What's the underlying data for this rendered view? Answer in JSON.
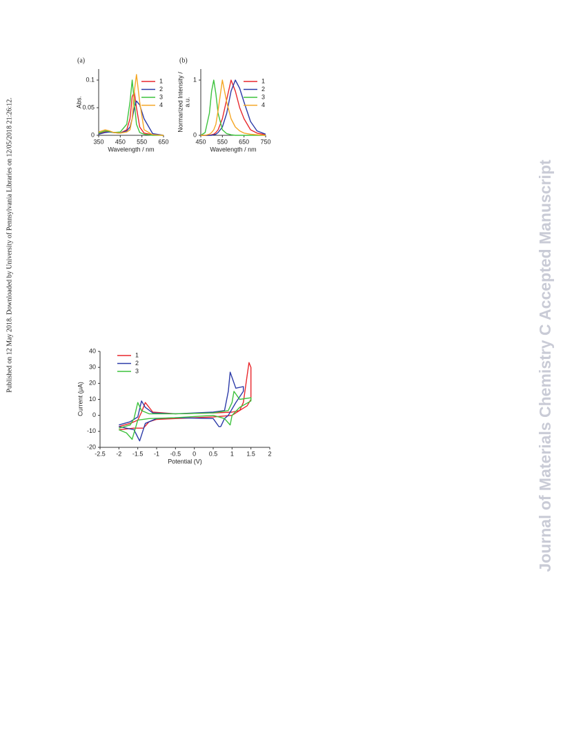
{
  "side_note": "Published on 12 May 2018. Downloaded by University of Pennsylvania Libraries on 12/05/2018 21:26:12.",
  "watermark": "Journal of Materials Chemistry C Accepted Manuscript",
  "chart_data": [
    {
      "type": "line",
      "panel_label": "(a)",
      "x_label": "Wavelength / nm",
      "y_label": [
        "Abs."
      ],
      "x": [
        350,
        380,
        400,
        420,
        450,
        480,
        495,
        505,
        515,
        525,
        540,
        560,
        600,
        650
      ],
      "xlim": [
        350,
        650
      ],
      "xticks": [
        350,
        450,
        550,
        650
      ],
      "ylim": [
        0,
        0.12
      ],
      "yticks": [
        0,
        0.05,
        0.1
      ],
      "legend": "upper right",
      "series": [
        {
          "name": "1",
          "color": "#e8262b",
          "values": [
            0.003,
            0.006,
            0.007,
            0.005,
            0.004,
            0.01,
            0.03,
            0.07,
            0.078,
            0.05,
            0.015,
            0.004,
            0.001,
            0
          ]
        },
        {
          "name": "2",
          "color": "#2b3aa8",
          "values": [
            0.002,
            0.005,
            0.006,
            0.005,
            0.004,
            0.008,
            0.015,
            0.03,
            0.05,
            0.062,
            0.055,
            0.03,
            0.003,
            0
          ]
        },
        {
          "name": "3",
          "color": "#3cc23c",
          "values": [
            0.004,
            0.008,
            0.007,
            0.005,
            0.006,
            0.02,
            0.06,
            0.1,
            0.06,
            0.02,
            0.005,
            0.002,
            0,
            0
          ]
        },
        {
          "name": "4",
          "color": "#f5a623",
          "values": [
            0.006,
            0.01,
            0.008,
            0.005,
            0.004,
            0.006,
            0.01,
            0.03,
            0.08,
            0.11,
            0.06,
            0.01,
            0.001,
            0
          ]
        }
      ]
    },
    {
      "type": "line",
      "panel_label": "(b)",
      "x_label": "Wavelength / nm",
      "y_label": [
        "Normarized Intensity /",
        "a.u."
      ],
      "x": [
        450,
        470,
        490,
        500,
        510,
        520,
        530,
        550,
        570,
        590,
        610,
        630,
        650,
        680,
        710,
        750
      ],
      "xlim": [
        450,
        750
      ],
      "xticks": [
        450,
        550,
        650,
        750
      ],
      "ylim": [
        0,
        1.2
      ],
      "yticks": [
        0,
        1
      ],
      "legend": "upper right",
      "series": [
        {
          "name": "1",
          "color": "#e8262b",
          "values": [
            0,
            0,
            0,
            0.01,
            0.02,
            0.05,
            0.1,
            0.3,
            0.65,
            1,
            0.8,
            0.5,
            0.3,
            0.1,
            0.04,
            0.01
          ]
        },
        {
          "name": "2",
          "color": "#2b3aa8",
          "values": [
            0,
            0,
            0,
            0,
            0.01,
            0.02,
            0.05,
            0.15,
            0.4,
            0.8,
            1,
            0.85,
            0.6,
            0.25,
            0.08,
            0.02
          ]
        },
        {
          "name": "3",
          "color": "#3cc23c",
          "values": [
            0,
            0.05,
            0.4,
            0.8,
            1,
            0.75,
            0.4,
            0.1,
            0.03,
            0.01,
            0,
            0,
            0,
            0,
            0,
            0
          ]
        },
        {
          "name": "4",
          "color": "#f5a623",
          "values": [
            0,
            0,
            0.02,
            0.05,
            0.1,
            0.2,
            0.45,
            1,
            0.6,
            0.3,
            0.15,
            0.08,
            0.04,
            0.02,
            0.01,
            0
          ]
        }
      ]
    },
    {
      "type": "line",
      "x_label": "Potential (V)",
      "y_label": [
        "Current (μA)"
      ],
      "xlim": [
        -2.5,
        2
      ],
      "xticks": [
        -2.5,
        -2,
        -1.5,
        -1,
        -0.5,
        0,
        0.5,
        1,
        1.5,
        2
      ],
      "ylim": [
        -20,
        40
      ],
      "yticks": [
        -20,
        -10,
        0,
        10,
        20,
        30,
        40
      ],
      "legend": "upper left",
      "series": [
        {
          "name": "1",
          "color": "#e8262b",
          "x": [
            -2,
            -1.7,
            -1.5,
            -1.4,
            -1.3,
            -1.1,
            -0.5,
            0.5,
            1.0,
            1.2,
            1.3,
            1.4,
            1.45,
            1.5,
            1.5,
            1.4,
            1.2,
            1.0,
            0.5,
            -0.5,
            -1.0,
            -1.2,
            -1.35,
            -1.45,
            -1.6,
            -2
          ],
          "values": [
            -7,
            -5,
            -3,
            2,
            8,
            2,
            1,
            1.5,
            2,
            3,
            8,
            25,
            33,
            30,
            10,
            6,
            3,
            0,
            -1,
            -2,
            -2.5,
            -4,
            -8,
            -8,
            -8,
            -9
          ]
        },
        {
          "name": "2",
          "color": "#2b3aa8",
          "x": [
            -2,
            -1.7,
            -1.5,
            -1.4,
            -1.3,
            -1.1,
            -0.5,
            0.5,
            0.8,
            0.9,
            0.95,
            1.1,
            1.3,
            1.3,
            1.1,
            0.9,
            0.8,
            0.7,
            0.65,
            0.5,
            -0.5,
            -1,
            -1.3,
            -1.45,
            -1.6,
            -2
          ],
          "values": [
            -6,
            -4,
            -1,
            9,
            5,
            1.5,
            1,
            2,
            3,
            15,
            27,
            17,
            18,
            15,
            8,
            0,
            -2,
            -7,
            -7,
            -2,
            -1.5,
            -2,
            -5,
            -16,
            -9,
            -7
          ]
        },
        {
          "name": "3",
          "color": "#3cc23c",
          "x": [
            -2,
            -1.7,
            -1.6,
            -1.5,
            -1.4,
            -1.2,
            -0.5,
            0.5,
            0.9,
            1.0,
            1.05,
            1.2,
            1.5,
            1.5,
            1.2,
            1.0,
            0.95,
            0.8,
            0.5,
            -0.5,
            -1.2,
            -1.5,
            -1.65,
            -1.8,
            -2
          ],
          "values": [
            -8,
            -6,
            -2,
            8,
            3,
            1,
            1,
            1.5,
            3,
            8,
            15,
            10,
            11,
            9,
            5,
            0,
            -6,
            -2,
            0,
            -1.5,
            -2,
            -3,
            -15,
            -11,
            -9
          ]
        }
      ]
    }
  ]
}
